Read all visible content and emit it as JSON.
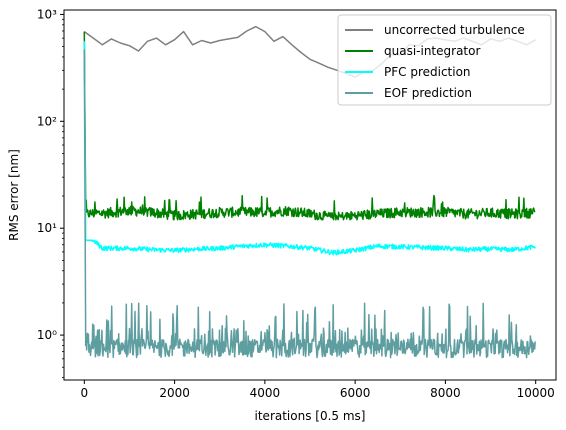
{
  "chart_data": {
    "type": "line",
    "xlabel": "iterations [0.5 ms]",
    "ylabel": "RMS error [nm]",
    "xlim": [
      -450,
      10450
    ],
    "ylim": [
      0.38,
      1100
    ],
    "yscale": "log",
    "grid": false,
    "legend_placement": "top-right",
    "x_ticks": [
      0,
      2000,
      4000,
      6000,
      8000,
      10000
    ],
    "x_tick_labels": [
      "0",
      "2000",
      "4000",
      "6000",
      "8000",
      "10000"
    ],
    "y_ticks": [
      1,
      10,
      100,
      1000
    ],
    "y_tick_labels": [
      "10⁰",
      "10¹",
      "10²",
      "10³"
    ],
    "series": [
      {
        "name": "uncorrected turbulence",
        "color": "#808080",
        "points": [
          [
            0,
            690
          ],
          [
            200,
            600
          ],
          [
            400,
            520
          ],
          [
            600,
            590
          ],
          [
            800,
            540
          ],
          [
            1000,
            510
          ],
          [
            1200,
            455
          ],
          [
            1400,
            560
          ],
          [
            1600,
            600
          ],
          [
            1800,
            520
          ],
          [
            2000,
            580
          ],
          [
            2200,
            690
          ],
          [
            2400,
            520
          ],
          [
            2600,
            570
          ],
          [
            2800,
            540
          ],
          [
            3000,
            570
          ],
          [
            3200,
            590
          ],
          [
            3400,
            610
          ],
          [
            3600,
            700
          ],
          [
            3800,
            770
          ],
          [
            4000,
            690
          ],
          [
            4200,
            560
          ],
          [
            4400,
            620
          ],
          [
            4600,
            520
          ],
          [
            4800,
            440
          ],
          [
            5000,
            380
          ],
          [
            5200,
            350
          ],
          [
            5400,
            320
          ],
          [
            5600,
            300
          ],
          [
            5800,
            280
          ],
          [
            6000,
            260
          ],
          [
            6200,
            290
          ],
          [
            6400,
            300
          ],
          [
            6600,
            350
          ],
          [
            6800,
            420
          ],
          [
            7000,
            420
          ],
          [
            7200,
            520
          ],
          [
            7400,
            510
          ],
          [
            7600,
            590
          ],
          [
            7800,
            600
          ],
          [
            8000,
            580
          ],
          [
            8200,
            560
          ],
          [
            8400,
            600
          ],
          [
            8600,
            560
          ],
          [
            8800,
            520
          ],
          [
            9000,
            590
          ],
          [
            9200,
            560
          ],
          [
            9400,
            600
          ],
          [
            9600,
            560
          ],
          [
            9800,
            520
          ],
          [
            10000,
            580
          ]
        ]
      },
      {
        "name": "quasi-integrator",
        "color": "#008000",
        "base": [
          [
            0,
            13.5
          ],
          [
            500,
            13.8
          ],
          [
            1000,
            14.5
          ],
          [
            1500,
            14
          ],
          [
            2000,
            13
          ],
          [
            2500,
            13.5
          ],
          [
            3000,
            14
          ],
          [
            3500,
            14
          ],
          [
            4000,
            14
          ],
          [
            4500,
            14.5
          ],
          [
            5000,
            13.5
          ],
          [
            5500,
            12.5
          ],
          [
            6000,
            13
          ],
          [
            6500,
            13.5
          ],
          [
            7000,
            14
          ],
          [
            7500,
            14
          ],
          [
            8000,
            14
          ],
          [
            8500,
            13.5
          ],
          [
            9000,
            13.8
          ],
          [
            9500,
            13.5
          ],
          [
            10000,
            14
          ]
        ],
        "noise_range": [
          12,
          22
        ]
      },
      {
        "name": "PFC prediction",
        "color": "#00ffff",
        "base": [
          [
            0,
            10
          ],
          [
            150,
            8
          ],
          [
            400,
            6.5
          ],
          [
            1000,
            6.5
          ],
          [
            1500,
            6.3
          ],
          [
            2000,
            6.2
          ],
          [
            2500,
            6.4
          ],
          [
            3000,
            6.5
          ],
          [
            3500,
            6.8
          ],
          [
            4000,
            7
          ],
          [
            4500,
            6.8
          ],
          [
            5000,
            6.5
          ],
          [
            5500,
            5.9
          ],
          [
            6000,
            6.2
          ],
          [
            6500,
            6.8
          ],
          [
            7000,
            6.7
          ],
          [
            7500,
            6.6
          ],
          [
            8000,
            6.5
          ],
          [
            8500,
            6.3
          ],
          [
            9000,
            6.4
          ],
          [
            9500,
            6.3
          ],
          [
            10000,
            6.7
          ]
        ],
        "noise_range": [
          5.6,
          7.7
        ]
      },
      {
        "name": "EOF prediction",
        "color": "#5f9ea0",
        "base": [
          [
            0,
            0.75
          ],
          [
            10000,
            0.75
          ]
        ],
        "noise_range": [
          0.6,
          2.0
        ]
      }
    ]
  }
}
